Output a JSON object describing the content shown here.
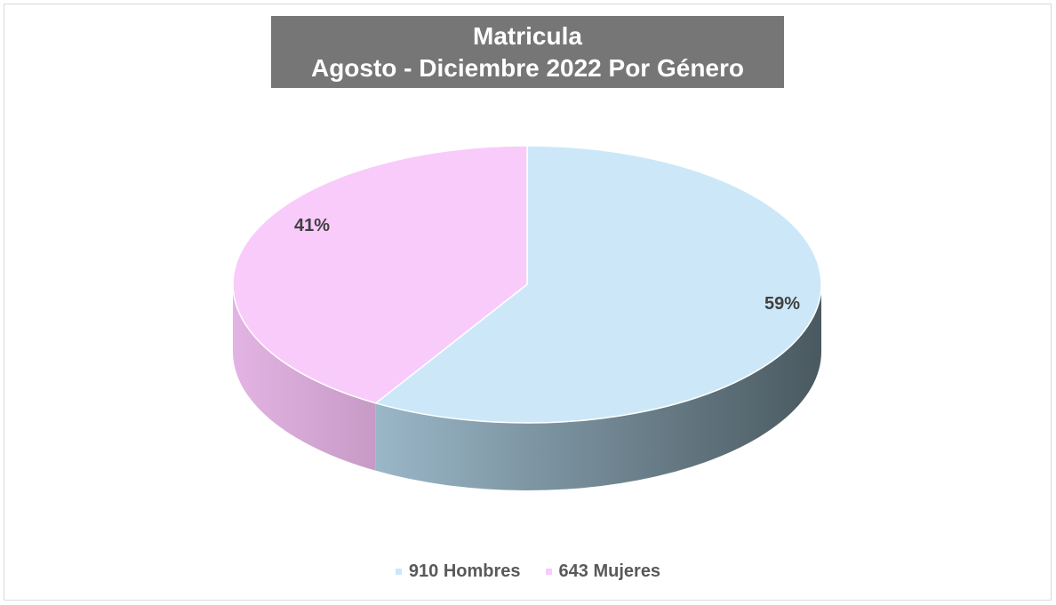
{
  "chart_data": {
    "type": "pie",
    "title_line1": "Matricula",
    "title_line2": "Agosto - Diciembre 2022 Por Género",
    "labels": [
      "910 Hombres",
      "643 Mujeres"
    ],
    "values": [
      910,
      643
    ],
    "percent_labels": [
      "59%",
      "41%"
    ],
    "colors": {
      "hombres_top": "#cce8f8",
      "mujeres_top": "#f9cbfa",
      "hombres_side_light": "#9ab7c8",
      "hombres_side_dark": "#4a5960",
      "mujeres_side_light": "#e3b4e3",
      "mujeres_side_dark": "#c79ac6",
      "title_bg": "#767676",
      "label_text": "#404040",
      "legend_text": "#595959"
    },
    "legend_position": "bottom",
    "three_d": true
  }
}
